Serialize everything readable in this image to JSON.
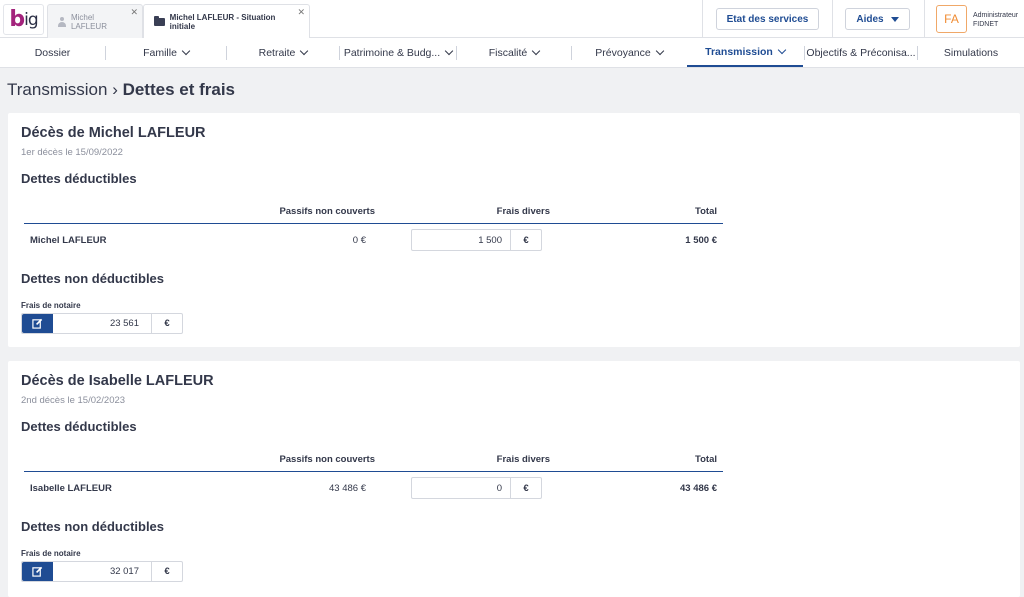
{
  "topbar": {
    "tabs": [
      {
        "label": "Michel LAFLEUR",
        "icon": "user-icon"
      },
      {
        "label": "Michel LAFLEUR - Situation initiale",
        "icon": "folder-icon"
      }
    ],
    "services_label": "Etat des services",
    "aides_label": "Aides",
    "avatar_initials": "FA",
    "user_role": "Administrateur",
    "user_org": "FIDNET"
  },
  "nav": {
    "items": [
      {
        "label": "Dossier"
      },
      {
        "label": "Famille"
      },
      {
        "label": "Retraite"
      },
      {
        "label": "Patrimoine & Budg..."
      },
      {
        "label": "Fiscalité"
      },
      {
        "label": "Prévoyance"
      },
      {
        "label": "Transmission"
      },
      {
        "label": "Objectifs & Préconisa..."
      },
      {
        "label": "Simulations"
      }
    ],
    "active": "Transmission"
  },
  "page": {
    "breadcrumb": "Transmission",
    "title": "Dettes et frais"
  },
  "deces": [
    {
      "title": "Décès de Michel LAFLEUR",
      "subtitle": "1er décès le 15/09/2022",
      "deductibles_title": "Dettes déductibles",
      "headers": {
        "passifs": "Passifs non couverts",
        "frais": "Frais divers",
        "total": "Total"
      },
      "row": {
        "name": "Michel LAFLEUR",
        "passifs": "0 €",
        "frais": "1 500",
        "unit": "€",
        "total": "1 500 €"
      },
      "non_deductibles_title": "Dettes non déductibles",
      "notaire_label": "Frais de notaire",
      "notaire_value": "23 561",
      "notaire_unit": "€"
    },
    {
      "title": "Décès de Isabelle LAFLEUR",
      "subtitle": "2nd décès le 15/02/2023",
      "deductibles_title": "Dettes déductibles",
      "headers": {
        "passifs": "Passifs non couverts",
        "frais": "Frais divers",
        "total": "Total"
      },
      "row": {
        "name": "Isabelle LAFLEUR",
        "passifs": "43 486 €",
        "frais": "0",
        "unit": "€",
        "total": "43 486 €"
      },
      "non_deductibles_title": "Dettes non déductibles",
      "notaire_label": "Frais de notaire",
      "notaire_value": "32 017",
      "notaire_unit": "€"
    }
  ],
  "colors": {
    "brand": "#1f4c93",
    "logo": "#a3237c",
    "avatar": "#f08c33"
  }
}
